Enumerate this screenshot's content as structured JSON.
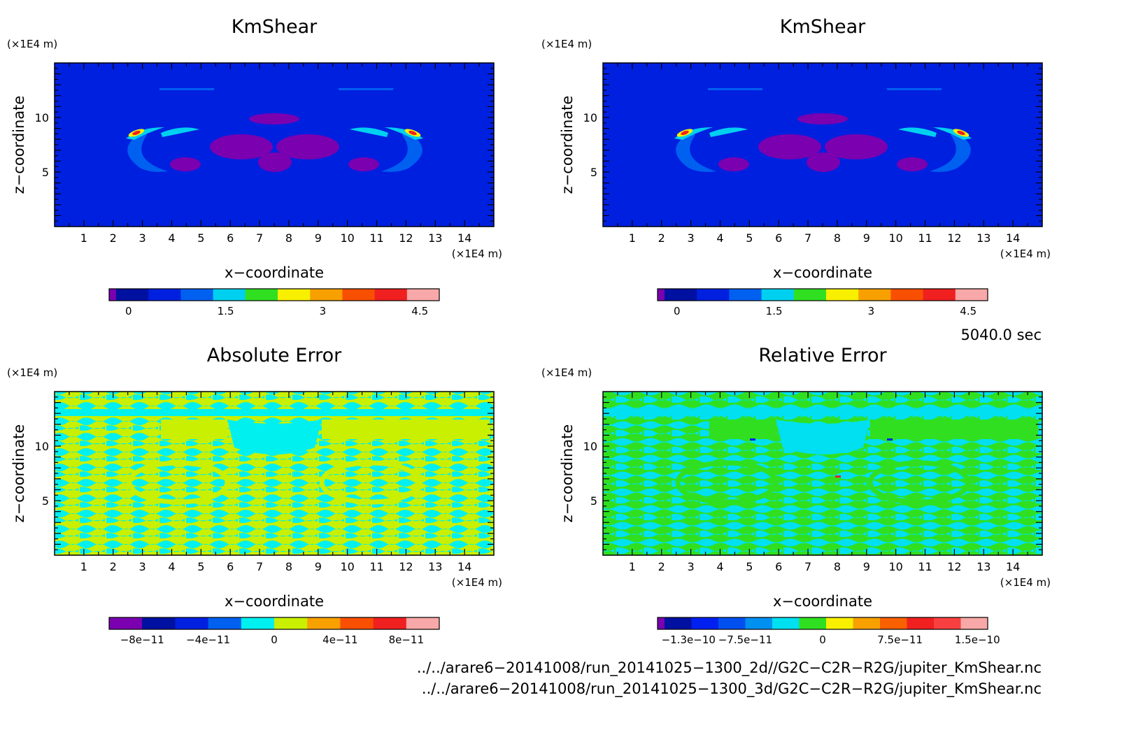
{
  "chart_data": [
    {
      "type": "heatmap",
      "title": "KmShear",
      "xlabel": "x−coordinate",
      "ylabel": "z−coordinate",
      "x_unit": "(×1E4 m)",
      "y_unit": "(×1E4 m)",
      "xlim": [
        0,
        15
      ],
      "ylim": [
        0,
        15
      ],
      "xticks": [
        1,
        2,
        3,
        4,
        5,
        6,
        7,
        8,
        9,
        10,
        11,
        12,
        13,
        14
      ],
      "yticks": [
        5,
        10
      ],
      "colorbar": {
        "colors": [
          "#7a00b0",
          "#0010a0",
          "#0020e0",
          "#0060f0",
          "#00d0f0",
          "#30e020",
          "#f8f000",
          "#f8a000",
          "#f85000",
          "#f02020",
          "#f8a8a8"
        ],
        "ticks": [
          {
            "value": 0,
            "label": "0"
          },
          {
            "value": 1.5,
            "label": "1.5"
          },
          {
            "value": 3,
            "label": "3"
          },
          {
            "value": 4.5,
            "label": "4.5"
          }
        ],
        "range": [
          -0.3,
          4.8
        ]
      }
    },
    {
      "type": "heatmap",
      "title": "KmShear",
      "xlabel": "x−coordinate",
      "ylabel": "z−coordinate",
      "x_unit": "(×1E4 m)",
      "y_unit": "(×1E4 m)",
      "xlim": [
        0,
        15
      ],
      "ylim": [
        0,
        15
      ],
      "xticks": [
        1,
        2,
        3,
        4,
        5,
        6,
        7,
        8,
        9,
        10,
        11,
        12,
        13,
        14
      ],
      "yticks": [
        5,
        10
      ],
      "colorbar": {
        "colors": [
          "#7a00b0",
          "#0010a0",
          "#0020e0",
          "#0060f0",
          "#00d0f0",
          "#30e020",
          "#f8f000",
          "#f8a000",
          "#f85000",
          "#f02020",
          "#f8a8a8"
        ],
        "ticks": [
          {
            "value": 0,
            "label": "0"
          },
          {
            "value": 1.5,
            "label": "1.5"
          },
          {
            "value": 3,
            "label": "3"
          },
          {
            "value": 4.5,
            "label": "4.5"
          }
        ],
        "range": [
          -0.3,
          4.8
        ]
      }
    },
    {
      "type": "heatmap",
      "title": "Absolute Error",
      "xlabel": "x−coordinate",
      "ylabel": "z−coordinate",
      "x_unit": "(×1E4 m)",
      "y_unit": "(×1E4 m)",
      "xlim": [
        0,
        15
      ],
      "ylim": [
        0,
        15
      ],
      "xticks": [
        1,
        2,
        3,
        4,
        5,
        6,
        7,
        8,
        9,
        10,
        11,
        12,
        13,
        14
      ],
      "yticks": [
        5,
        10
      ],
      "colorbar": {
        "colors": [
          "#7a00b0",
          "#0010a0",
          "#0020e0",
          "#0060f0",
          "#00f0f0",
          "#c8f000",
          "#f8a000",
          "#f85000",
          "#f02020",
          "#f8a8a8"
        ],
        "ticks": [
          {
            "value": -8e-11,
            "label": "−8e−11"
          },
          {
            "value": -4e-11,
            "label": "−4e−11"
          },
          {
            "value": 0,
            "label": "0"
          },
          {
            "value": 4e-11,
            "label": "4e−11"
          },
          {
            "value": 8e-11,
            "label": "8e−11"
          }
        ],
        "range": [
          -1e-10,
          1e-10
        ]
      }
    },
    {
      "type": "heatmap",
      "title": "Relative Error",
      "xlabel": "x−coordinate",
      "ylabel": "z−coordinate",
      "x_unit": "(×1E4 m)",
      "y_unit": "(×1E4 m)",
      "xlim": [
        0,
        15
      ],
      "ylim": [
        0,
        15
      ],
      "xticks": [
        1,
        2,
        3,
        4,
        5,
        6,
        7,
        8,
        9,
        10,
        11,
        12,
        13,
        14
      ],
      "yticks": [
        5,
        10
      ],
      "colorbar": {
        "colors": [
          "#7a00b0",
          "#0010a0",
          "#0020f0",
          "#0050f0",
          "#0090f0",
          "#00e0f0",
          "#30e020",
          "#f8f000",
          "#f8a000",
          "#f86000",
          "#f02020",
          "#f84040",
          "#f8a8a8"
        ],
        "ticks": [
          {
            "value": -1.3e-10,
            "label": "−1.3e−10"
          },
          {
            "value": -7.5e-11,
            "label": "−7.5e−11"
          },
          {
            "value": 0,
            "label": "0"
          },
          {
            "value": 7.5e-11,
            "label": "7.5e−11"
          },
          {
            "value": 1.5e-10,
            "label": "1.5e−10"
          }
        ],
        "range": [
          -1.6e-10,
          1.6e-10
        ]
      }
    }
  ],
  "time_label": "5040.0 sec",
  "footer": {
    "line1": "../../arare6−20141008/run_20141025−1300_2d//G2C−C2R−R2G/jupiter_KmShear.nc",
    "line2": "../../arare6−20141008/run_20141025−1300_3d/G2C−C2R−R2G/jupiter_KmShear.nc"
  }
}
